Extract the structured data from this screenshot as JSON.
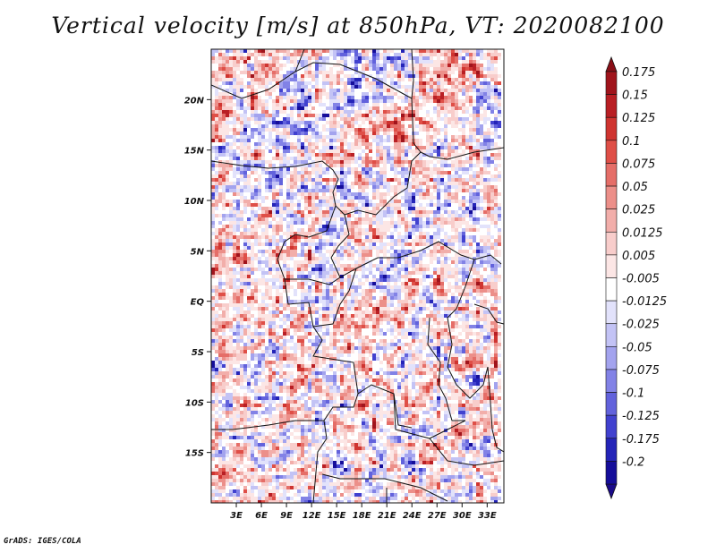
{
  "title": "Vertical velocity [m/s] at 850hPa, VT: 2020082100",
  "credit": "GrADS: IGES/COLA",
  "map": {
    "projection": "lat-lon",
    "lon_range": [
      0,
      35
    ],
    "lat_range": [
      -20,
      25
    ],
    "lat_ticks": [
      {
        "value": 20,
        "label": "20N"
      },
      {
        "value": 15,
        "label": "15N"
      },
      {
        "value": 10,
        "label": "10N"
      },
      {
        "value": 5,
        "label": "5N"
      },
      {
        "value": 0,
        "label": "EQ"
      },
      {
        "value": -5,
        "label": "5S"
      },
      {
        "value": -10,
        "label": "10S"
      },
      {
        "value": -15,
        "label": "15S"
      }
    ],
    "lon_ticks": [
      {
        "value": 3,
        "label": "3E"
      },
      {
        "value": 6,
        "label": "6E"
      },
      {
        "value": 9,
        "label": "9E"
      },
      {
        "value": 12,
        "label": "12E"
      },
      {
        "value": 15,
        "label": "15E"
      },
      {
        "value": 18,
        "label": "18E"
      },
      {
        "value": 21,
        "label": "21E"
      },
      {
        "value": 24,
        "label": "24E"
      },
      {
        "value": 27,
        "label": "27E"
      },
      {
        "value": 30,
        "label": "30E"
      },
      {
        "value": 33,
        "label": "33E"
      }
    ]
  },
  "colorbar": {
    "levels": [
      {
        "label": "0.175",
        "color": "#a0141c"
      },
      {
        "label": "0.15",
        "color": "#b91f24"
      },
      {
        "label": "0.125",
        "color": "#cf3430"
      },
      {
        "label": "0.1",
        "color": "#df4f47"
      },
      {
        "label": "0.075",
        "color": "#e56e68"
      },
      {
        "label": "0.05",
        "color": "#ec8f89"
      },
      {
        "label": "0.025",
        "color": "#f2aeaa"
      },
      {
        "label": "0.0125",
        "color": "#f8cdcb"
      },
      {
        "label": "0.005",
        "color": "#fce6e5"
      },
      {
        "label": "-0.005",
        "color": "#ffffff"
      },
      {
        "label": "-0.0125",
        "color": "#e2e2fb"
      },
      {
        "label": "-0.025",
        "color": "#c3c3f5"
      },
      {
        "label": "-0.05",
        "color": "#a3a3ee"
      },
      {
        "label": "-0.075",
        "color": "#8282e6"
      },
      {
        "label": "-0.1",
        "color": "#6262dc"
      },
      {
        "label": "-0.125",
        "color": "#4141cf"
      },
      {
        "label": "-0.175",
        "color": "#2424b8"
      },
      {
        "label": "-0.2",
        "color": "#150d9a"
      }
    ],
    "top_color": "#8a0f17",
    "bottom_color": "#1a0a8a"
  }
}
